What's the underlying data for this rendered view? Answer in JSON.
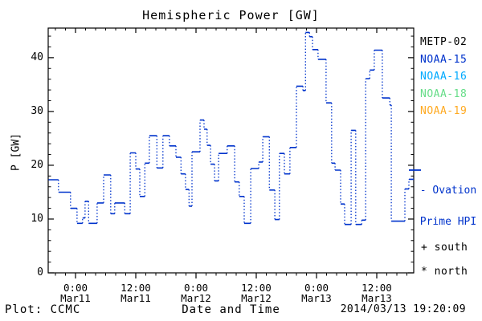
{
  "title": "Hemispheric Power [GW]",
  "ylabel": "P [GW]",
  "xlabel": "Date and Time",
  "footer_left": "Plot: CCMC",
  "footer_right": "2014/03/13 19:20:09",
  "colors": {
    "line": "#0033cc",
    "frame": "#000000",
    "metp02": "#000000",
    "noaa15": "#0033cc",
    "noaa16": "#00aaff",
    "noaa18": "#66dd88",
    "noaa19": "#ffaa22"
  },
  "legend": [
    {
      "label": "METP-02",
      "color": "#000000"
    },
    {
      "label": "NOAA-15",
      "color": "#0033cc"
    },
    {
      "label": "NOAA-16",
      "color": "#00aaff"
    },
    {
      "label": "NOAA-18",
      "color": "#66dd88"
    },
    {
      "label": "NOAA-19",
      "color": "#ffaa22"
    }
  ],
  "annotations": {
    "ovation_line1": "- Ovation",
    "ovation_line2": "Prime HPI",
    "south": "+ south",
    "north": "* north"
  },
  "chart_data": {
    "type": "line",
    "style": "steps-post",
    "title": "Hemispheric Power [GW]",
    "xlabel": "Date and Time",
    "ylabel": "P [GW]",
    "x_unit": "hours after 2014-03-11 00:00 UT",
    "xlim": [
      -5.44,
      67.36
    ],
    "ylim": [
      0,
      45.5
    ],
    "grid": false,
    "x_major_ticks": [
      {
        "hours": 0,
        "time": "0:00",
        "date": "Mar11"
      },
      {
        "hours": 12,
        "time": "12:00",
        "date": "Mar11"
      },
      {
        "hours": 24,
        "time": "0:00",
        "date": "Mar12"
      },
      {
        "hours": 36,
        "time": "12:00",
        "date": "Mar12"
      },
      {
        "hours": 48,
        "time": "0:00",
        "date": "Mar13"
      },
      {
        "hours": 60,
        "time": "12:00",
        "date": "Mar13"
      }
    ],
    "x_minor_step_hours": 2,
    "y_major_ticks": [
      0,
      10,
      20,
      30,
      40
    ],
    "y_minor_step": 2,
    "series": [
      {
        "name": "Ovation Prime HPI",
        "color": "#0033cc",
        "steps_t_gw": [
          [
            -5.4,
            17.3
          ],
          [
            -3.4,
            15.0
          ],
          [
            -1.0,
            12.0
          ],
          [
            0.3,
            9.2
          ],
          [
            1.4,
            10.2
          ],
          [
            1.9,
            13.3
          ],
          [
            2.6,
            9.2
          ],
          [
            4.3,
            13.0
          ],
          [
            5.6,
            18.2
          ],
          [
            7.0,
            11.0
          ],
          [
            7.8,
            13.0
          ],
          [
            9.8,
            11.0
          ],
          [
            10.9,
            22.3
          ],
          [
            12.0,
            19.3
          ],
          [
            12.8,
            14.2
          ],
          [
            13.8,
            20.4
          ],
          [
            14.7,
            25.5
          ],
          [
            16.2,
            19.5
          ],
          [
            17.4,
            25.5
          ],
          [
            18.7,
            23.6
          ],
          [
            20.0,
            21.5
          ],
          [
            21.0,
            18.4
          ],
          [
            21.9,
            15.5
          ],
          [
            22.6,
            12.4
          ],
          [
            23.2,
            22.5
          ],
          [
            24.8,
            28.4
          ],
          [
            25.6,
            26.7
          ],
          [
            26.2,
            23.7
          ],
          [
            26.9,
            20.2
          ],
          [
            27.7,
            17.1
          ],
          [
            28.5,
            22.2
          ],
          [
            30.2,
            23.6
          ],
          [
            31.7,
            16.9
          ],
          [
            32.6,
            14.2
          ],
          [
            33.6,
            9.2
          ],
          [
            34.9,
            19.4
          ],
          [
            36.5,
            20.6
          ],
          [
            37.3,
            25.3
          ],
          [
            38.6,
            15.4
          ],
          [
            39.7,
            9.9
          ],
          [
            40.6,
            22.2
          ],
          [
            41.6,
            18.4
          ],
          [
            42.7,
            23.3
          ],
          [
            44.0,
            34.7
          ],
          [
            45.3,
            33.9
          ],
          [
            45.8,
            44.7
          ],
          [
            46.6,
            43.9
          ],
          [
            47.2,
            41.5
          ],
          [
            48.3,
            39.7
          ],
          [
            49.9,
            31.6
          ],
          [
            51.0,
            20.4
          ],
          [
            51.7,
            19.1
          ],
          [
            52.8,
            12.8
          ],
          [
            53.6,
            9.0
          ],
          [
            54.9,
            26.5
          ],
          [
            55.8,
            9.0
          ],
          [
            57.0,
            9.8
          ],
          [
            57.8,
            36.1
          ],
          [
            58.6,
            37.7
          ],
          [
            59.5,
            41.4
          ],
          [
            61.1,
            32.5
          ],
          [
            62.6,
            31.2
          ],
          [
            62.9,
            9.6
          ],
          [
            65.6,
            15.6
          ],
          [
            66.4,
            17.4
          ]
        ],
        "t_end": 67.36
      }
    ],
    "ovation_prime_hpi_marker_gw": 19.1
  }
}
